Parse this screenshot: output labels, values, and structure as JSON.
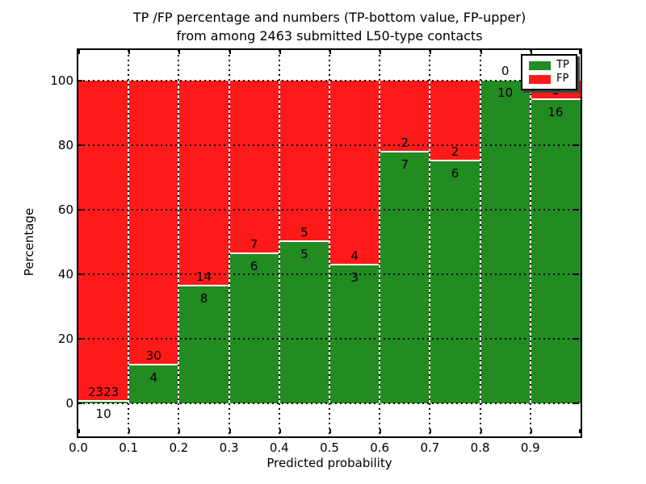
{
  "figure": {
    "title_line1": "TP /FP percentage and numbers (TP-bottom value, FP-upper)",
    "title_line2": "from among 2463 submitted L50-type contacts",
    "xlabel": "Predicted probability",
    "ylabel": "Percentage"
  },
  "legend": {
    "items": [
      {
        "label": "TP",
        "color": "#228b22"
      },
      {
        "label": "FP",
        "color": "#ff1a1a"
      }
    ],
    "position": "upper right"
  },
  "chart_data": {
    "type": "bar",
    "stacked": true,
    "title": "TP /FP percentage and numbers (TP-bottom value, FP-upper) from among 2463 submitted L50-type contacts",
    "xlabel": "Predicted probability",
    "ylabel": "Percentage",
    "total_contacts": 2463,
    "x_bin_edges": [
      0.0,
      0.1,
      0.2,
      0.3,
      0.4,
      0.5,
      0.6,
      0.7,
      0.8,
      0.9,
      1.0
    ],
    "x_tick_labels": [
      "0.0",
      "0.1",
      "0.2",
      "0.3",
      "0.4",
      "0.5",
      "0.6",
      "0.7",
      "0.8",
      "0.9"
    ],
    "y_ticks": [
      0,
      20,
      40,
      60,
      80,
      100
    ],
    "ylim": [
      -10.5,
      109.5
    ],
    "grid": "dotted",
    "series_colors": {
      "tp": "#228b22",
      "fp": "#ff1a1a"
    },
    "bars": [
      {
        "bin": "0.0-0.1",
        "tp": 10,
        "fp": 2323,
        "tp_pct": 0.43,
        "fp_pct": 99.57
      },
      {
        "bin": "0.1-0.2",
        "tp": 4,
        "fp": 30,
        "tp_pct": 11.76,
        "fp_pct": 88.24
      },
      {
        "bin": "0.2-0.3",
        "tp": 8,
        "fp": 14,
        "tp_pct": 36.36,
        "fp_pct": 63.64
      },
      {
        "bin": "0.3-0.4",
        "tp": 6,
        "fp": 7,
        "tp_pct": 46.15,
        "fp_pct": 53.85
      },
      {
        "bin": "0.4-0.5",
        "tp": 5,
        "fp": 5,
        "tp_pct": 50.0,
        "fp_pct": 50.0
      },
      {
        "bin": "0.5-0.6",
        "tp": 3,
        "fp": 4,
        "tp_pct": 42.86,
        "fp_pct": 57.14
      },
      {
        "bin": "0.6-0.7",
        "tp": 7,
        "fp": 2,
        "tp_pct": 77.78,
        "fp_pct": 22.22
      },
      {
        "bin": "0.7-0.8",
        "tp": 6,
        "fp": 2,
        "tp_pct": 75.0,
        "fp_pct": 25.0
      },
      {
        "bin": "0.8-0.9",
        "tp": 10,
        "fp": 0,
        "tp_pct": 100.0,
        "fp_pct": 0.0
      },
      {
        "bin": "0.9-1.0",
        "tp": 16,
        "fp": 1,
        "tp_pct": 94.12,
        "fp_pct": 5.88
      }
    ]
  }
}
